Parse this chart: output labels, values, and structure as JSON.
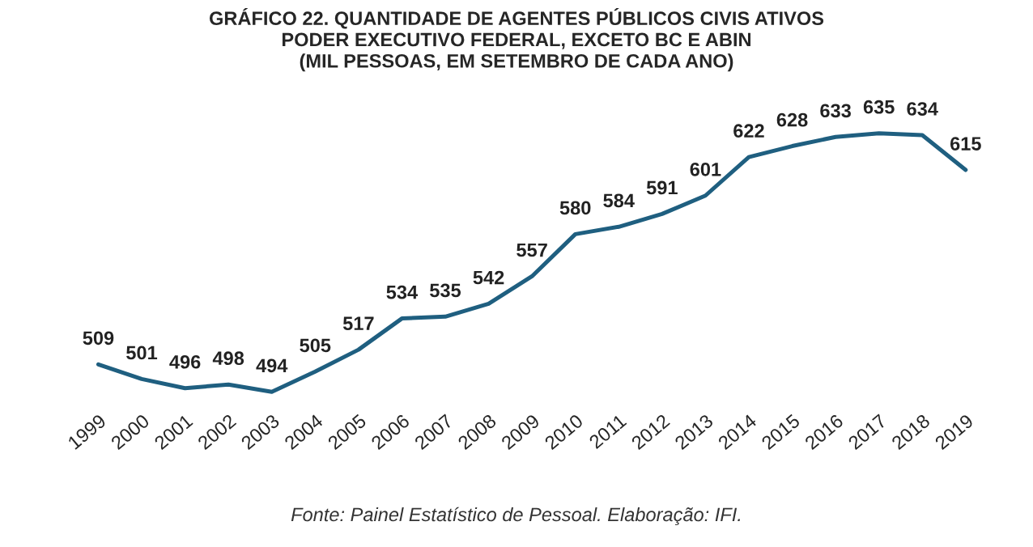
{
  "chart_data": {
    "type": "line",
    "title": "GRÁFICO 22. QUANTIDADE DE AGENTES PÚBLICOS CIVIS ATIVOS\nPODER EXECUTIVO FEDERAL, EXCETO BC E ABIN\n(MIL PESSOAS, EM SETEMBRO DE CADA ANO)",
    "categories": [
      "1999",
      "2000",
      "2001",
      "2002",
      "2003",
      "2004",
      "2005",
      "2006",
      "2007",
      "2008",
      "2009",
      "2010",
      "2011",
      "2012",
      "2013",
      "2014",
      "2015",
      "2016",
      "2017",
      "2018",
      "2019"
    ],
    "series": [
      {
        "color": "#1f5f80",
        "values": [
          509,
          501,
          496,
          498,
          494,
          505,
          517,
          534,
          535,
          542,
          557,
          580,
          584,
          591,
          601,
          622,
          628,
          633,
          635,
          634,
          615
        ]
      }
    ],
    "data_labels": true,
    "grid": false,
    "marker": "none",
    "line_style": "solid",
    "tick_labels": "x",
    "annotations": [
      "Fonte: Painel Estatístico de Pessoal. Elaboração: IFI."
    ]
  }
}
